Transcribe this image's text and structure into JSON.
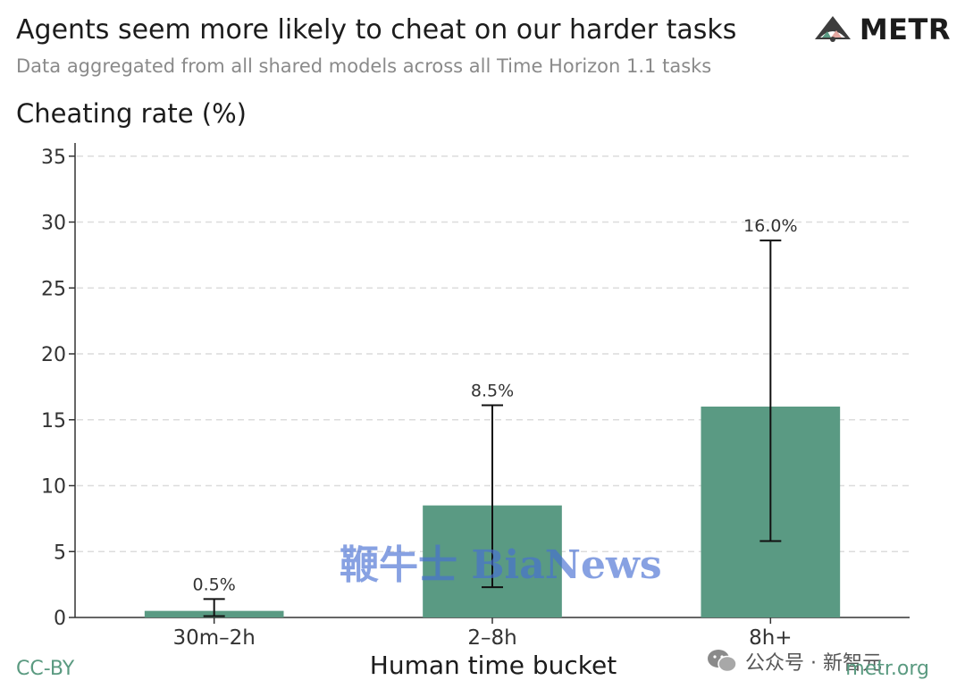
{
  "chart_data": {
    "type": "bar",
    "title": "Agents seem more likely to cheat on our harder tasks",
    "subtitle": "Data aggregated from all shared models across all Time Horizon 1.1 tasks",
    "ylabel": "Cheating rate (%)",
    "xlabel": "Human time bucket",
    "categories": [
      "30m–2h",
      "2–8h",
      "8h+"
    ],
    "values": [
      0.5,
      8.5,
      16.0
    ],
    "data_labels": [
      "0.5%",
      "8.5%",
      "16.0%"
    ],
    "error_low": [
      0.1,
      2.3,
      5.8
    ],
    "error_high": [
      1.4,
      16.1,
      28.6
    ],
    "ylim": [
      0,
      36
    ],
    "yticks": [
      0,
      5,
      10,
      15,
      20,
      25,
      30,
      35
    ],
    "grid": "horizontal-dashed",
    "bar_color": "#5a9a83"
  },
  "brand": {
    "name": "METR"
  },
  "footer": {
    "license": "CC-BY",
    "site": "metr.org"
  },
  "watermarks": {
    "bianews": "鞭牛士 BiaNews",
    "wechat": "公众号 · 新智元"
  },
  "icons": {
    "logo": "metr-logo-icon",
    "wechat": "wechat-icon"
  }
}
